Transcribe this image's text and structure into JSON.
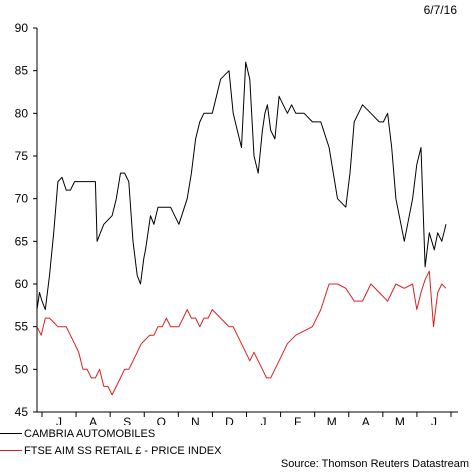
{
  "date_label": "6/7/16",
  "source": "Source: Thomson Reuters Datastream",
  "colors": {
    "series1": "#000000",
    "series2": "#d92020",
    "axis": "#000000"
  },
  "chart_data": {
    "type": "line",
    "title": "",
    "xlabel": "",
    "ylabel": "",
    "ylim": [
      45,
      90
    ],
    "yticks": [
      45,
      50,
      55,
      60,
      65,
      70,
      75,
      80,
      85,
      90
    ],
    "xlim": [
      0,
      49
    ],
    "x_axis_labels": [
      "J",
      "A",
      "S",
      "O",
      "N",
      "D",
      "J",
      "F",
      "M",
      "A",
      "M",
      "J"
    ],
    "grid": false,
    "legend_position": "bottom-left",
    "series": [
      {
        "name": "CAMBRIA AUTOMOBILES",
        "color": "#000000",
        "x": [
          0,
          0.3,
          0.6,
          1,
          1.5,
          2,
          2.5,
          3,
          3.5,
          4,
          4.5,
          5,
          6,
          7,
          7.2,
          7.6,
          8,
          9,
          9.5,
          10,
          10.5,
          11,
          11.5,
          12,
          12.4,
          12.8,
          13,
          13.3,
          13.6,
          14,
          14.5,
          15,
          16,
          16.5,
          17,
          18,
          18.5,
          19,
          19.5,
          20,
          21,
          22,
          23,
          23.5,
          24,
          24.5,
          25,
          25.5,
          26,
          26.5,
          27,
          27.3,
          27.6,
          28,
          28.5,
          29,
          29.5,
          30,
          30.5,
          31,
          31.5,
          32,
          33,
          34,
          35,
          36,
          37,
          37.5,
          38,
          38.5,
          39,
          40,
          41,
          41.5,
          42,
          42.5,
          43,
          44,
          45,
          45.5,
          46,
          46.5,
          47,
          47.3,
          47.6,
          48,
          48.5,
          49
        ],
        "values": [
          57,
          59,
          58,
          57,
          61,
          66,
          72,
          72.5,
          71,
          71,
          72,
          72,
          72,
          72,
          65,
          66,
          67,
          68,
          70,
          73,
          73,
          72,
          65,
          61,
          60,
          63,
          64,
          66,
          68,
          67,
          69,
          69,
          69,
          68,
          67,
          70,
          73,
          77,
          79,
          80,
          80,
          84,
          85,
          80,
          78,
          76,
          86,
          84,
          75,
          73,
          78,
          80,
          81,
          78,
          77,
          82,
          81,
          80,
          81,
          80,
          80,
          80,
          79,
          79,
          76,
          70,
          69,
          73,
          79,
          80,
          81,
          80,
          79,
          79,
          80,
          76,
          70,
          65,
          70,
          74,
          76,
          62,
          66,
          65,
          64,
          66,
          65,
          67
        ]
      },
      {
        "name": "FTSE AIM SS RETAIL £ - PRICE INDEX",
        "color": "#d92020",
        "x": [
          0,
          0.5,
          1,
          1.5,
          2,
          2.5,
          3,
          3.5,
          4,
          4.5,
          5,
          5.5,
          6,
          6.5,
          7,
          7.5,
          8,
          8.5,
          9,
          9.5,
          10,
          10.5,
          11,
          11.5,
          12,
          12.5,
          13,
          13.5,
          14,
          14.5,
          15,
          15.5,
          16,
          17,
          18,
          18.5,
          19,
          19.5,
          20,
          20.5,
          21,
          22,
          23,
          23.5,
          24,
          24.5,
          25,
          25.5,
          26,
          26.5,
          27,
          27.5,
          28,
          28.5,
          29,
          30,
          31,
          32,
          33,
          34,
          35,
          36,
          37,
          38,
          39,
          40,
          41,
          42,
          43,
          44,
          45,
          45.5,
          46,
          46.5,
          47,
          47.5,
          48,
          48.5,
          49
        ],
        "values": [
          55,
          54,
          56,
          56,
          55.5,
          55,
          55,
          55,
          54,
          53,
          52,
          50,
          50,
          49,
          49,
          50,
          48,
          48,
          47,
          48,
          49,
          50,
          50,
          51,
          52,
          53,
          53.5,
          54,
          54,
          55,
          55,
          56,
          55,
          55,
          57,
          56,
          56,
          55,
          56,
          56,
          57,
          56,
          55,
          55,
          54,
          53,
          52,
          51,
          52,
          51,
          50,
          49,
          49,
          50,
          51,
          53,
          54,
          54.5,
          55,
          57,
          60,
          60,
          59.5,
          58,
          58,
          60,
          59,
          58,
          60,
          59.5,
          60,
          57,
          59,
          60.5,
          61.5,
          55,
          59,
          60,
          59.5
        ]
      }
    ]
  }
}
